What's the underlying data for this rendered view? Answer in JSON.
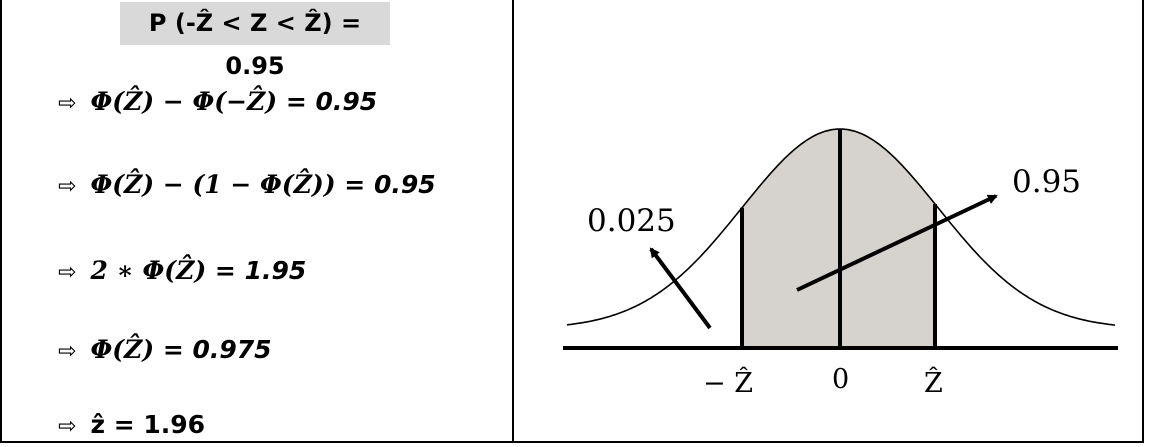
{
  "header": {
    "text": "P (-Ẑ < Z < Ẑ) = 0.95"
  },
  "steps": [
    {
      "expr": "Φ(Ẑ) − Φ(−Ẑ)",
      "equals": " = ",
      "value": "0.95"
    },
    {
      "expr": "Φ(Ẑ) − (1 − Φ(Ẑ))",
      "equals": " = ",
      "value": "0.95"
    },
    {
      "expr": "2 ∗ Φ(Ẑ)",
      "equals": " = ",
      "value": "1.95"
    },
    {
      "expr": "Φ(Ẑ)",
      "equals": " = ",
      "value": "0.975"
    },
    {
      "expr": "ẑ",
      "equals": " = ",
      "value": "1.96"
    }
  ],
  "arrow_symbol": "⇨",
  "figure": {
    "label_tail": "0.025",
    "label_center": "0.95",
    "tick_neg": "− Ẑ",
    "tick_zero": "0",
    "tick_pos": "Ẑ",
    "shade_color": "#d6d2cd"
  }
}
